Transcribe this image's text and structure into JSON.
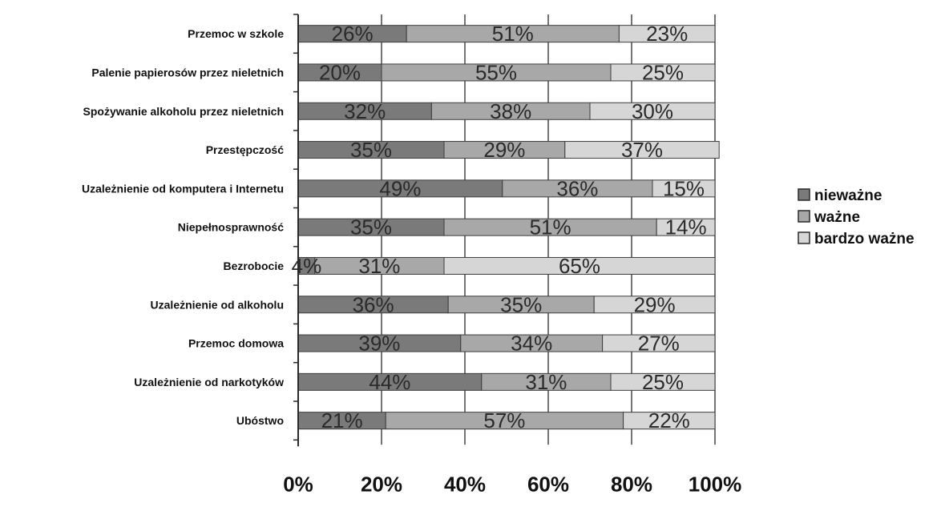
{
  "chart_data": {
    "type": "bar",
    "orientation": "horizontal",
    "stacked": true,
    "percent": true,
    "categories": [
      "Przemoc w szkole",
      "Palenie papierosów przez nieletnich",
      "Spożywanie alkoholu przez nieletnich",
      "Przestępczość",
      "Uzależnienie od komputera i Internetu",
      "Niepełnosprawność",
      "Bezrobocie",
      "Uzależnienie od alkoholu",
      "Przemoc domowa",
      "Uzależnienie od narkotyków",
      "Ubóstwo"
    ],
    "series": [
      {
        "name": "nieważne",
        "values": [
          26,
          20,
          32,
          35,
          49,
          35,
          4,
          36,
          39,
          44,
          21
        ]
      },
      {
        "name": "ważne",
        "values": [
          51,
          55,
          38,
          29,
          36,
          51,
          31,
          35,
          34,
          31,
          57
        ]
      },
      {
        "name": "bardzo ważne",
        "values": [
          23,
          25,
          30,
          37,
          15,
          14,
          65,
          29,
          27,
          25,
          22
        ]
      }
    ],
    "xlim": [
      0,
      100
    ],
    "x_ticks": [
      "0%",
      "20%",
      "40%",
      "60%",
      "80%",
      "100%"
    ],
    "title": "",
    "xlabel": "",
    "ylabel": "",
    "legend": "right",
    "grid": true,
    "colors": [
      "#7a7a7a",
      "#a8a8a8",
      "#d6d6d6"
    ]
  }
}
